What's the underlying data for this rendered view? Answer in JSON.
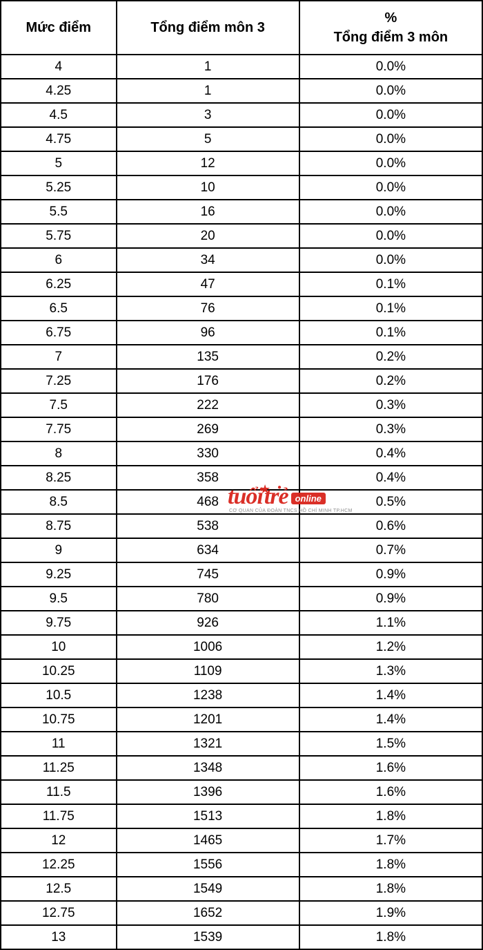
{
  "table": {
    "type": "table",
    "columns": [
      {
        "label": "Mức điểm",
        "width_pct": 24
      },
      {
        "label": "Tổng điểm môn 3",
        "width_pct": 38
      },
      {
        "label_line1": "%",
        "label_line2": "Tổng điểm 3 môn",
        "width_pct": 38
      }
    ],
    "header_fontsize": 20,
    "cell_fontsize": 19,
    "border_color": "#000000",
    "border_width": 2,
    "text_color": "#000000",
    "background_color": "#ffffff",
    "rows": [
      [
        "4",
        "1",
        "0.0%"
      ],
      [
        "4.25",
        "1",
        "0.0%"
      ],
      [
        "4.5",
        "3",
        "0.0%"
      ],
      [
        "4.75",
        "5",
        "0.0%"
      ],
      [
        "5",
        "12",
        "0.0%"
      ],
      [
        "5.25",
        "10",
        "0.0%"
      ],
      [
        "5.5",
        "16",
        "0.0%"
      ],
      [
        "5.75",
        "20",
        "0.0%"
      ],
      [
        "6",
        "34",
        "0.0%"
      ],
      [
        "6.25",
        "47",
        "0.1%"
      ],
      [
        "6.5",
        "76",
        "0.1%"
      ],
      [
        "6.75",
        "96",
        "0.1%"
      ],
      [
        "7",
        "135",
        "0.2%"
      ],
      [
        "7.25",
        "176",
        "0.2%"
      ],
      [
        "7.5",
        "222",
        "0.3%"
      ],
      [
        "7.75",
        "269",
        "0.3%"
      ],
      [
        "8",
        "330",
        "0.4%"
      ],
      [
        "8.25",
        "358",
        "0.4%"
      ],
      [
        "8.5",
        "468",
        "0.5%"
      ],
      [
        "8.75",
        "538",
        "0.6%"
      ],
      [
        "9",
        "634",
        "0.7%"
      ],
      [
        "9.25",
        "745",
        "0.9%"
      ],
      [
        "9.5",
        "780",
        "0.9%"
      ],
      [
        "9.75",
        "926",
        "1.1%"
      ],
      [
        "10",
        "1006",
        "1.2%"
      ],
      [
        "10.25",
        "1109",
        "1.3%"
      ],
      [
        "10.5",
        "1238",
        "1.4%"
      ],
      [
        "10.75",
        "1201",
        "1.4%"
      ],
      [
        "11",
        "1321",
        "1.5%"
      ],
      [
        "11.25",
        "1348",
        "1.6%"
      ],
      [
        "11.5",
        "1396",
        "1.6%"
      ],
      [
        "11.75",
        "1513",
        "1.8%"
      ],
      [
        "12",
        "1465",
        "1.7%"
      ],
      [
        "12.25",
        "1556",
        "1.8%"
      ],
      [
        "12.5",
        "1549",
        "1.8%"
      ],
      [
        "12.75",
        "1652",
        "1.9%"
      ],
      [
        "13",
        "1539",
        "1.8%"
      ]
    ]
  },
  "watermark": {
    "brand_part1": "tuổi",
    "brand_part2": "trẻ",
    "online_label": "online",
    "subtitle": "CƠ QUAN CỦA ĐOÀN TNCS HỒ CHÍ MINH TP.HCM",
    "brand_color": "#d9241c",
    "subtitle_color": "#888888"
  }
}
